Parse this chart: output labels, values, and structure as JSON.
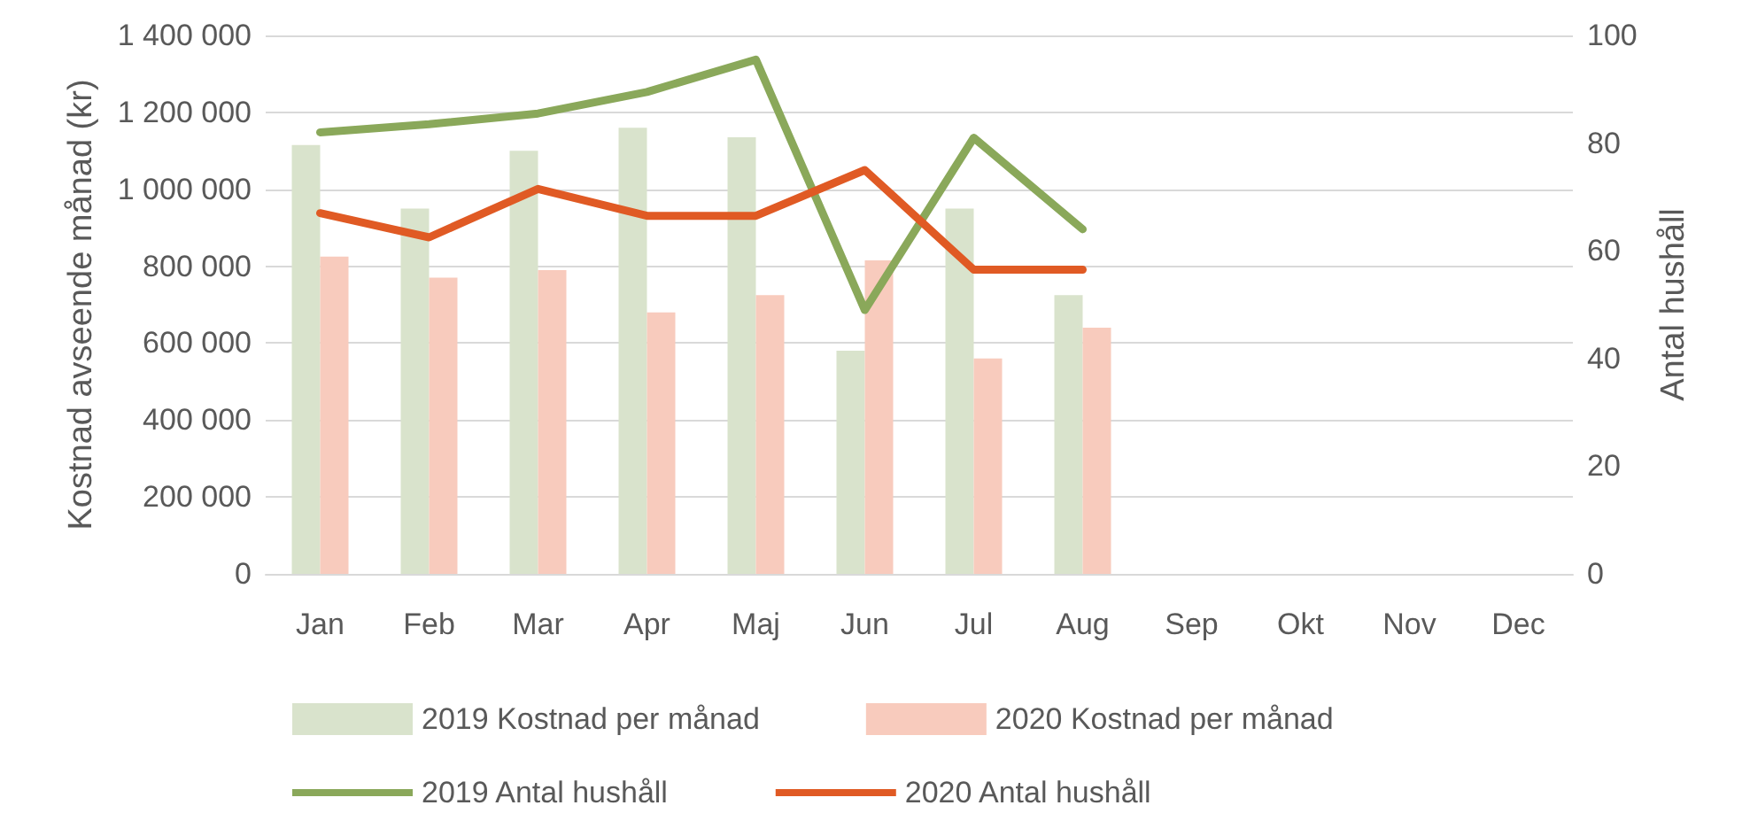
{
  "chart_data": {
    "type": "bar",
    "ylabel": "Kostnad avseende månad (kr)",
    "y2label": "Antal hushåll",
    "categories": [
      "Jan",
      "Feb",
      "Mar",
      "Apr",
      "Maj",
      "Jun",
      "Jul",
      "Aug",
      "Sep",
      "Okt",
      "Nov",
      "Dec"
    ],
    "series": [
      {
        "name": "2019 Kostnad per månad",
        "color": "#d9e3cc",
        "values": [
          1115000,
          950000,
          1100000,
          1160000,
          1135000,
          580000,
          950000,
          725000,
          null,
          null,
          null,
          null
        ]
      },
      {
        "name": "2020 Kostnad per månad",
        "color": "#f8cbbd",
        "values": [
          825000,
          770000,
          790000,
          680000,
          725000,
          815000,
          560000,
          640000,
          null,
          null,
          null,
          null
        ]
      },
      {
        "name": "2019 Antal hushåll",
        "type": "line",
        "axis": "y2",
        "color": "#8aa85a",
        "values": [
          82,
          83.5,
          85.5,
          89.5,
          95.5,
          49,
          81,
          64,
          null,
          null,
          null,
          null
        ]
      },
      {
        "name": "2020 Antal hushåll",
        "type": "line",
        "axis": "y2",
        "color": "#e05a24",
        "values": [
          67,
          62.5,
          71.5,
          66.5,
          66.5,
          75,
          56.5,
          56.5,
          null,
          null,
          null,
          null
        ]
      }
    ],
    "ylim": [
      0,
      1400000
    ],
    "yticks": [
      0,
      {
        "value": 200000,
        "label": "200 000"
      },
      {
        "value": 400000,
        "label": "400 000"
      },
      {
        "value": 600000,
        "label": "600 000"
      },
      {
        "value": 800000,
        "label": "800 000"
      },
      {
        "value": 1000000,
        "label": "1 000 000"
      },
      {
        "value": 1200000,
        "label": "1 200 000"
      },
      {
        "value": 1400000,
        "label": "1 400 000"
      }
    ],
    "y2lim": [
      0,
      100
    ],
    "y2ticks": [
      0,
      20,
      40,
      60,
      80,
      100
    ],
    "grid": "y",
    "legend": "bottom",
    "marker": "none",
    "line_style": "solid"
  }
}
